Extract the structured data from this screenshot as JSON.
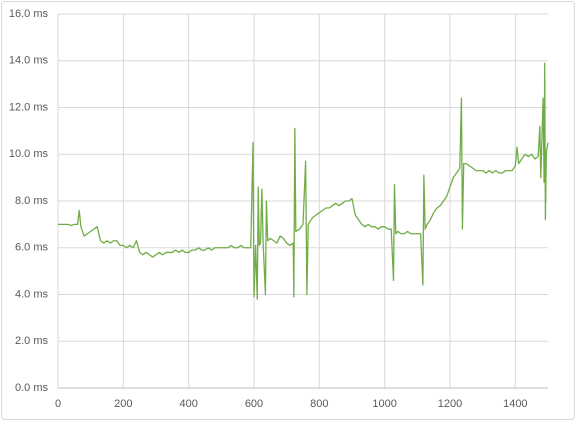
{
  "chart_data": {
    "type": "line",
    "x": [
      0,
      10,
      20,
      30,
      40,
      50,
      60,
      65,
      70,
      80,
      90,
      100,
      110,
      120,
      130,
      140,
      150,
      160,
      170,
      180,
      190,
      200,
      210,
      220,
      230,
      240,
      250,
      260,
      270,
      280,
      290,
      300,
      310,
      320,
      330,
      340,
      350,
      360,
      370,
      380,
      390,
      400,
      410,
      420,
      430,
      440,
      450,
      460,
      470,
      480,
      490,
      500,
      510,
      520,
      530,
      540,
      550,
      560,
      570,
      580,
      590,
      597,
      600,
      605,
      610,
      613,
      616,
      620,
      624,
      628,
      635,
      638,
      642,
      650,
      660,
      670,
      680,
      690,
      700,
      710,
      720,
      722,
      725,
      728,
      740,
      750,
      758,
      762,
      766,
      770,
      780,
      790,
      800,
      810,
      820,
      830,
      840,
      850,
      860,
      870,
      880,
      890,
      900,
      910,
      920,
      930,
      940,
      950,
      960,
      970,
      980,
      990,
      1000,
      1010,
      1020,
      1027,
      1030,
      1034,
      1040,
      1050,
      1060,
      1070,
      1080,
      1090,
      1100,
      1110,
      1117,
      1120,
      1124,
      1130,
      1140,
      1150,
      1160,
      1170,
      1180,
      1190,
      1200,
      1210,
      1220,
      1230,
      1235,
      1238,
      1242,
      1250,
      1260,
      1270,
      1280,
      1290,
      1300,
      1310,
      1320,
      1330,
      1340,
      1350,
      1360,
      1370,
      1380,
      1390,
      1400,
      1405,
      1410,
      1420,
      1430,
      1440,
      1450,
      1460,
      1470,
      1475,
      1478,
      1480,
      1485,
      1488,
      1490,
      1492,
      1495,
      1500
    ],
    "series": [
      {
        "color": "#70ad47",
        "values": [
          7.0,
          7.0,
          7.0,
          7.0,
          6.95,
          7.0,
          7.0,
          7.6,
          6.9,
          6.5,
          6.6,
          6.7,
          6.8,
          6.9,
          6.3,
          6.2,
          6.3,
          6.2,
          6.3,
          6.3,
          6.1,
          6.1,
          6.0,
          6.1,
          6.0,
          6.3,
          5.8,
          5.7,
          5.8,
          5.7,
          5.6,
          5.7,
          5.8,
          5.7,
          5.8,
          5.8,
          5.8,
          5.9,
          5.8,
          5.9,
          5.8,
          5.8,
          5.9,
          5.9,
          6.0,
          5.9,
          5.9,
          6.0,
          5.9,
          6.0,
          6.0,
          6.0,
          6.0,
          6.0,
          6.1,
          6.0,
          6.0,
          6.1,
          6.0,
          6.0,
          6.0,
          10.5,
          3.9,
          6.1,
          3.8,
          8.6,
          6.1,
          6.2,
          8.5,
          6.2,
          4.0,
          8.0,
          6.3,
          6.4,
          6.3,
          6.2,
          6.5,
          6.4,
          6.2,
          6.1,
          6.2,
          3.9,
          11.1,
          6.7,
          6.8,
          7.0,
          9.7,
          4.0,
          7.0,
          7.1,
          7.3,
          7.4,
          7.5,
          7.6,
          7.7,
          7.7,
          7.8,
          7.9,
          7.8,
          7.9,
          8.0,
          8.0,
          8.1,
          7.4,
          7.2,
          7.0,
          6.9,
          7.0,
          6.9,
          6.9,
          6.8,
          6.9,
          6.9,
          6.8,
          6.8,
          4.6,
          8.7,
          6.6,
          6.7,
          6.6,
          6.6,
          6.7,
          6.6,
          6.6,
          6.6,
          6.6,
          4.4,
          9.1,
          6.8,
          7.0,
          7.2,
          7.5,
          7.7,
          7.8,
          8.0,
          8.2,
          8.6,
          9.0,
          9.2,
          9.4,
          12.4,
          6.8,
          9.6,
          9.6,
          9.5,
          9.4,
          9.3,
          9.3,
          9.3,
          9.2,
          9.3,
          9.2,
          9.3,
          9.2,
          9.2,
          9.3,
          9.3,
          9.3,
          9.5,
          10.3,
          9.6,
          9.8,
          10.0,
          9.9,
          10.0,
          9.8,
          9.9,
          11.2,
          9.0,
          10.0,
          12.4,
          8.8,
          13.9,
          7.2,
          10.1,
          10.5
        ]
      }
    ],
    "xlim": [
      0,
      1500
    ],
    "xticks": [
      0,
      200,
      400,
      600,
      800,
      1000,
      1200,
      1400
    ],
    "ylim": [
      0,
      16
    ],
    "yticks": [
      {
        "value": 0,
        "label": "0.0 ms"
      },
      {
        "value": 2,
        "label": "2.0 ms"
      },
      {
        "value": 4,
        "label": "4.0 ms"
      },
      {
        "value": 6,
        "label": "6.0 ms"
      },
      {
        "value": 8,
        "label": "8.0 ms"
      },
      {
        "value": 10,
        "label": "10.0 ms"
      },
      {
        "value": 12,
        "label": "12.0 ms"
      },
      {
        "value": 14,
        "label": "14.0 ms"
      },
      {
        "value": 16,
        "label": "16.0 ms"
      }
    ],
    "grid": true
  }
}
